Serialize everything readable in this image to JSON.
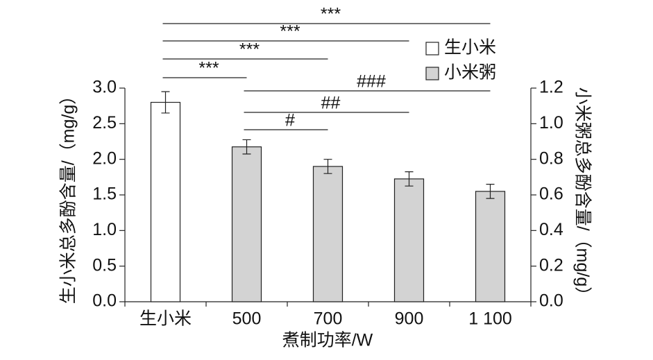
{
  "chart_data": {
    "type": "bar",
    "xlabel": "煮制功率/W",
    "ylabel": "生小米总多酚含量/（mg/g）",
    "y2label": "小米粥总多酚含量/（mg/g）",
    "categories": [
      "生小米",
      "500",
      "700",
      "900",
      "1 100"
    ],
    "series": [
      {
        "name": "生小米",
        "color": "#ffffff",
        "values": [
          2.8,
          null,
          null,
          null,
          null
        ],
        "errors": [
          0.15,
          null,
          null,
          null,
          null
        ]
      },
      {
        "name": "小米粥",
        "color": "#d3d3d3",
        "axis": "y2",
        "values": [
          null,
          0.87,
          0.76,
          0.69,
          0.62
        ],
        "errors": [
          null,
          0.04,
          0.04,
          0.04,
          0.04
        ]
      }
    ],
    "ylim": [
      0,
      3
    ],
    "yticks": [
      {
        "value": 0,
        "label": "0.0"
      },
      0.5,
      {
        "value": 1,
        "label": "1.0"
      },
      1.5,
      {
        "value": 2,
        "label": "2.0"
      },
      2.5,
      {
        "value": 3,
        "label": "3.0"
      }
    ],
    "y2lim": [
      0,
      1.2
    ],
    "y2ticks": [
      {
        "value": 0,
        "label": "0.0"
      },
      0.2,
      0.4,
      0.6,
      0.8,
      {
        "value": 1,
        "label": "1.0"
      },
      1.2
    ],
    "legend": "upper right",
    "annotations": [
      {
        "from": "生小米",
        "to": "1 100",
        "label": "***"
      },
      {
        "from": "生小米",
        "to": "900",
        "label": "***"
      },
      {
        "from": "生小米",
        "to": "700",
        "label": "***"
      },
      {
        "from": "生小米",
        "to": "500",
        "label": "***"
      },
      {
        "from": "500",
        "to": "1 100",
        "label": "###"
      },
      {
        "from": "500",
        "to": "900",
        "label": "##"
      },
      {
        "from": "500",
        "to": "700",
        "label": "#"
      }
    ]
  }
}
